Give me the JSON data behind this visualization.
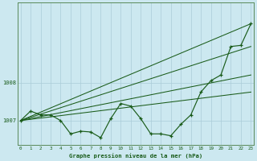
{
  "title": "Graphe pression niveau de la mer (hPa)",
  "bg_color": "#cce8f0",
  "grid_color": "#aaccd8",
  "line_color": "#1a5c1a",
  "label_color": "#1a5c1a",
  "spine_color": "#5a8a5a",
  "x_ticks": [
    0,
    1,
    2,
    3,
    4,
    5,
    6,
    7,
    8,
    9,
    10,
    11,
    12,
    13,
    14,
    15,
    16,
    17,
    18,
    19,
    20,
    21,
    22,
    23
  ],
  "ylim": [
    1006.35,
    1010.1
  ],
  "yticks": [
    1007,
    1008
  ],
  "pressure_data": [
    1007.0,
    1007.25,
    1007.15,
    1007.15,
    1007.0,
    1006.65,
    1006.72,
    1006.7,
    1006.55,
    1007.05,
    1007.45,
    1007.38,
    1007.05,
    1006.65,
    1006.65,
    1006.6,
    1006.9,
    1007.15,
    1007.75,
    1008.05,
    1008.2,
    1008.95,
    1008.98,
    1009.55
  ],
  "trend_lines": [
    {
      "x0": 0,
      "y0": 1007.0,
      "x1": 23,
      "y1": 1009.55
    },
    {
      "x0": 0,
      "y0": 1007.0,
      "x1": 23,
      "y1": 1008.95
    },
    {
      "x0": 0,
      "y0": 1007.0,
      "x1": 23,
      "y1": 1008.2
    },
    {
      "x0": 0,
      "y0": 1007.0,
      "x1": 23,
      "y1": 1007.75
    }
  ]
}
